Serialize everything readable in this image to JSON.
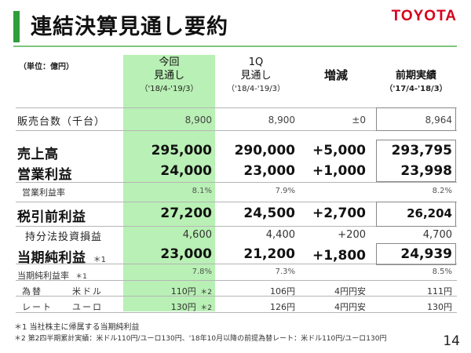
{
  "title": "連結決算見通し要約",
  "logo": "TOYOTA",
  "unit": "（単位：億円）",
  "headers": {
    "col1": {
      "line1": "今回",
      "line2": "見通し",
      "period": "（'18/4-'19/3）"
    },
    "col2": {
      "line1": "1Q",
      "line2": "見通し",
      "period": "（'18/4-'19/3）"
    },
    "col3": {
      "line1": "増減"
    },
    "col4": {
      "line1": "前期実績",
      "period": "（'17/4-'18/3）"
    }
  },
  "rows": {
    "sales_units": {
      "label": "販売台数（千台）",
      "v1": "8,900",
      "v2": "8,900",
      "v3": "±0",
      "v4": "8,964"
    },
    "revenue": {
      "label": "売上高",
      "v1": "295,000",
      "v2": "290,000",
      "v3": "+5,000",
      "v4": "293,795"
    },
    "op_income": {
      "label": "営業利益",
      "v1": "24,000",
      "v2": "23,000",
      "v3": "+1,000",
      "v4": "23,998"
    },
    "op_margin": {
      "label": "営業利益率",
      "v1": "8.1%",
      "v2": "7.9%",
      "v4": "8.2%"
    },
    "pretax": {
      "label": "税引前利益",
      "v1": "27,200",
      "v2": "24,500",
      "v3": "+2,700",
      "v4": "26,204"
    },
    "equity": {
      "label": "持分法投資損益",
      "v1": "4,600",
      "v2": "4,400",
      "v3": "+200",
      "v4": "4,700"
    },
    "net_income": {
      "label": "当期純利益",
      "mark": "＊1",
      "v1": "23,000",
      "v2": "21,200",
      "v3": "+1,800",
      "v4": "24,939"
    },
    "net_margin": {
      "label": "当期純利益率",
      "mark": "＊1",
      "v1": "7.8%",
      "v2": "7.3%",
      "v4": "8.5%"
    }
  },
  "fx": {
    "label1": "為替",
    "label2": "レート",
    "usd": {
      "label": "米ドル",
      "v1": "110円",
      "mark": "＊2",
      "v2": "106円",
      "v3": "4円円安",
      "v4": "111円"
    },
    "eur": {
      "label": "ユーロ",
      "v1": "130円",
      "mark": "＊2",
      "v2": "126円",
      "v3": "4円円安",
      "v4": "130円"
    }
  },
  "notes": {
    "n1": "＊1 当社株主に帰属する当期純利益",
    "n2": "＊2 第2四半期累計実績：米ドル110円/ユーロ130円、'18年10月以降の前提為替レート：米ドル110円/ユーロ130円"
  },
  "page": "14"
}
